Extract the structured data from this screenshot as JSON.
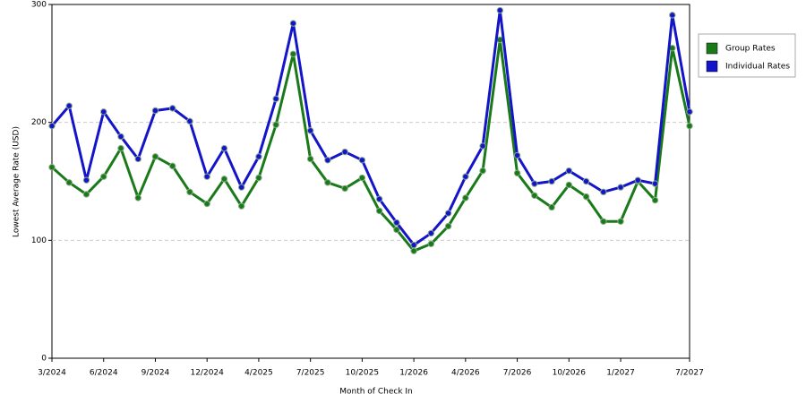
{
  "chart_data": {
    "type": "line",
    "x_label": "Month of Check In",
    "y_label": "Lowest Average Rate (USD)",
    "categories": [
      "3/2024",
      null,
      null,
      "6/2024",
      null,
      null,
      "9/2024",
      null,
      null,
      "12/2024",
      null,
      null,
      "4/2025",
      null,
      null,
      "7/2025",
      null,
      null,
      "10/2025",
      null,
      null,
      "1/2026",
      null,
      null,
      "4/2026",
      null,
      null,
      "7/2026",
      null,
      null,
      "10/2026",
      null,
      null,
      "1/2027",
      null,
      null,
      null,
      "7/2027"
    ],
    "series": [
      {
        "name": "Group Rates",
        "color": "#1a7a1a",
        "values": [
          162,
          149,
          139,
          154,
          178,
          136,
          171,
          163,
          141,
          131,
          152,
          129,
          153,
          198,
          258,
          169,
          149,
          144,
          153,
          125,
          109,
          91,
          97,
          112,
          136,
          159,
          270,
          157,
          138,
          128,
          147,
          137,
          116,
          116,
          150,
          134,
          263,
          197
        ]
      },
      {
        "name": "Individual Rates",
        "color": "#1414c8",
        "values": [
          197,
          214,
          151,
          209,
          188,
          169,
          210,
          212,
          201,
          154,
          178,
          145,
          171,
          220,
          284,
          193,
          168,
          175,
          168,
          135,
          115,
          96,
          106,
          123,
          154,
          180,
          295,
          172,
          148,
          150,
          159,
          150,
          141,
          145,
          151,
          148,
          291,
          209
        ]
      }
    ],
    "ylim": [
      0,
      300
    ],
    "yticks": [
      0,
      100,
      200,
      300
    ],
    "grid": true,
    "legend": "right"
  }
}
